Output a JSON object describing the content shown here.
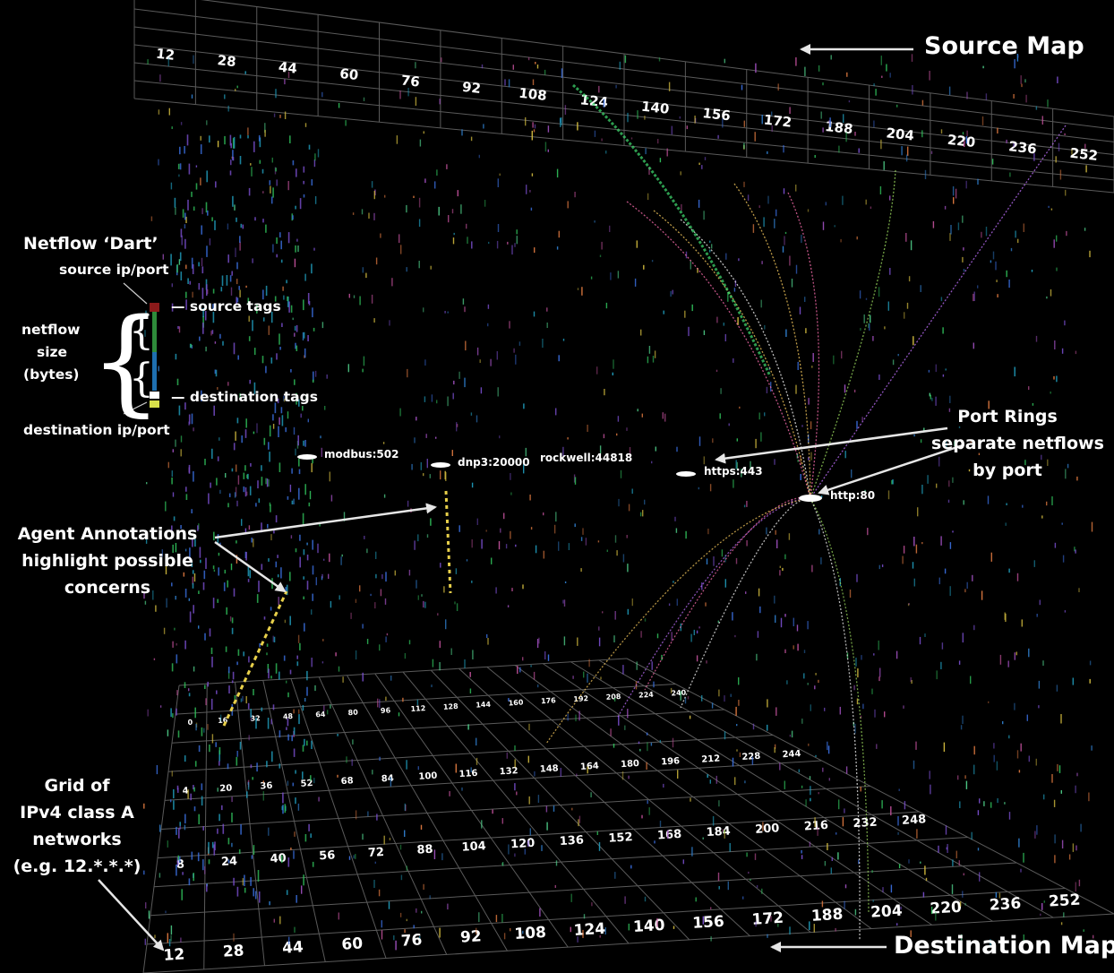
{
  "annotations": {
    "source_map": "Source Map",
    "destination_map": "Destination Map",
    "dart_title": "Netflow ‘Dart’",
    "dart_source": "source ip/port",
    "dart_netflow": "netflow",
    "dart_size": "size",
    "dart_bytes": "(bytes)",
    "dart_source_tags": "— source tags",
    "dart_dest_tags": "— destination tags",
    "dart_destination": "destination ip/port",
    "port_rings": [
      "Port Rings",
      "separate netflows",
      "by port"
    ],
    "agent": [
      "Agent Annotations",
      "highlight possible",
      "concerns"
    ],
    "grid": [
      "Grid of",
      "IPv4 class A",
      "networks",
      "(e.g. 12.*.*.*)"
    ]
  },
  "port_labels": {
    "modbus": "modbus:502",
    "dnp3": "dnp3:20000",
    "rockwell": "rockwell:44818",
    "https": "https:443",
    "http": "http:80"
  },
  "source_grid_labels": [
    "12",
    "28",
    "44",
    "60",
    "76",
    "92",
    "108",
    "124",
    "140",
    "156",
    "172",
    "188",
    "204",
    "220",
    "236",
    "252"
  ],
  "dest_grid_labels": {
    "row1": [
      "12",
      "28",
      "44",
      "60",
      "76",
      "92",
      "108",
      "124",
      "140",
      "156",
      "172",
      "188",
      "204",
      "220",
      "236",
      "252"
    ],
    "row2": [
      "8",
      "24",
      "40",
      "56",
      "72",
      "88",
      "104",
      "120",
      "136",
      "152",
      "168",
      "184",
      "200",
      "216",
      "232",
      "248"
    ],
    "row3": [
      "4",
      "20",
      "36",
      "52",
      "68",
      "84",
      "100",
      "116",
      "132",
      "148",
      "164",
      "180",
      "196",
      "212",
      "228",
      "244"
    ],
    "row4": [
      "0",
      "16",
      "32",
      "48",
      "64",
      "80",
      "96",
      "112",
      "128",
      "144",
      "160",
      "176",
      "192",
      "208",
      "224",
      "240"
    ]
  },
  "colors": {
    "dart_source_tag": "#8b1a1a",
    "dart_green": "#2e8b3a",
    "dart_blue": "#1e6fb0",
    "dart_dest_tag_white": "#ffffff",
    "dart_dest_tag_yellow": "#d8e04a",
    "annotation_yellow": "#e8d04a"
  }
}
